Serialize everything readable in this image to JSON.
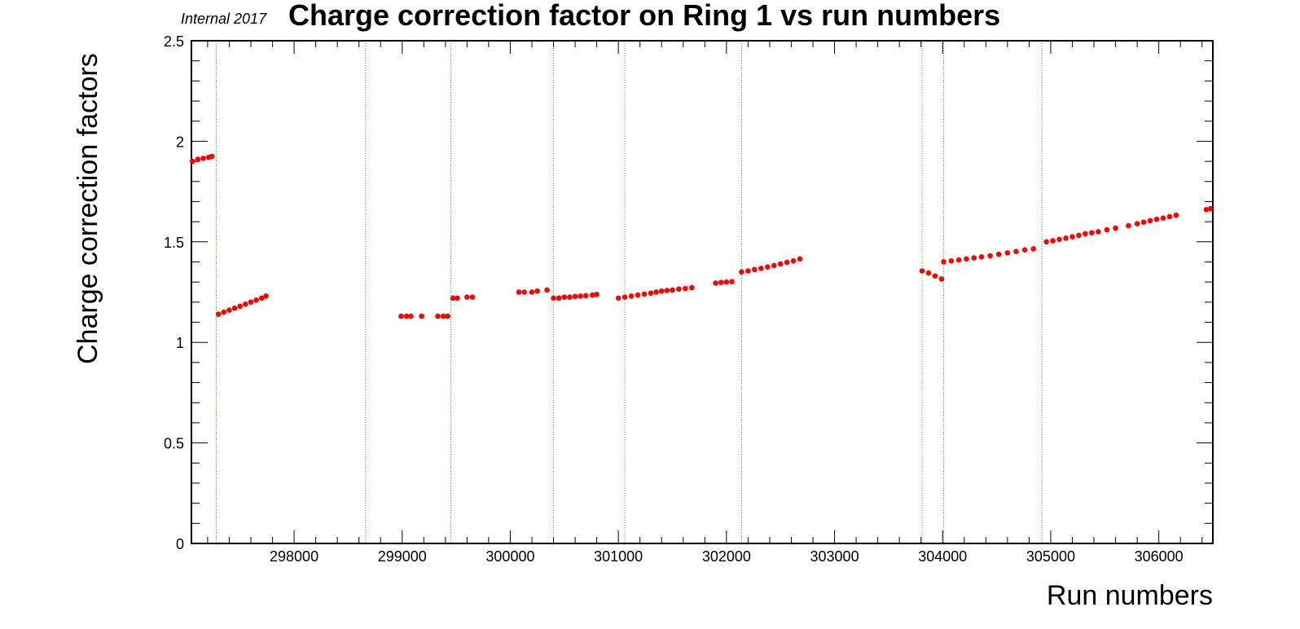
{
  "header": {
    "tag": "Internal 2017",
    "title": "Charge correction factor on Ring 1 vs run numbers"
  },
  "chart_data": {
    "type": "scatter",
    "title": "Charge correction factor on Ring 1 vs run numbers",
    "xlabel": "Run numbers",
    "ylabel": "Charge correction factors",
    "xlim": [
      297050,
      306500
    ],
    "ylim": [
      0,
      2.5
    ],
    "x_ticks": [
      298000,
      299000,
      300000,
      301000,
      302000,
      303000,
      304000,
      305000,
      306000
    ],
    "y_ticks": [
      0,
      0.5,
      1,
      1.5,
      2,
      2.5
    ],
    "y_tick_labels": [
      "0",
      "0.5",
      "1",
      "1.5",
      "2",
      "2.5"
    ],
    "grid": false,
    "marker_color": "#ff0000",
    "reference_line_color": "#00cc00",
    "vertical_reference_lines": [
      297280,
      298660,
      299450,
      300400,
      301060,
      302140,
      303810,
      304010,
      304920
    ],
    "points": [
      [
        297060,
        1.9
      ],
      [
        297110,
        1.91
      ],
      [
        297160,
        1.915
      ],
      [
        297210,
        1.92
      ],
      [
        297240,
        1.925
      ],
      [
        297300,
        1.14
      ],
      [
        297350,
        1.15
      ],
      [
        297400,
        1.16
      ],
      [
        297450,
        1.17
      ],
      [
        297500,
        1.18
      ],
      [
        297550,
        1.19
      ],
      [
        297600,
        1.2
      ],
      [
        297650,
        1.21
      ],
      [
        297700,
        1.22
      ],
      [
        297740,
        1.23
      ],
      [
        298990,
        1.13
      ],
      [
        299040,
        1.13
      ],
      [
        299080,
        1.13
      ],
      [
        299180,
        1.13
      ],
      [
        299330,
        1.13
      ],
      [
        299380,
        1.13
      ],
      [
        299420,
        1.13
      ],
      [
        299470,
        1.22
      ],
      [
        299510,
        1.22
      ],
      [
        299600,
        1.225
      ],
      [
        299650,
        1.225
      ],
      [
        300080,
        1.25
      ],
      [
        300130,
        1.25
      ],
      [
        300200,
        1.25
      ],
      [
        300250,
        1.255
      ],
      [
        300340,
        1.26
      ],
      [
        300400,
        1.22
      ],
      [
        300450,
        1.22
      ],
      [
        300500,
        1.225
      ],
      [
        300550,
        1.225
      ],
      [
        300600,
        1.228
      ],
      [
        300650,
        1.23
      ],
      [
        300700,
        1.232
      ],
      [
        300760,
        1.235
      ],
      [
        300800,
        1.238
      ],
      [
        301000,
        1.22
      ],
      [
        301060,
        1.225
      ],
      [
        301120,
        1.23
      ],
      [
        301180,
        1.235
      ],
      [
        301240,
        1.24
      ],
      [
        301300,
        1.245
      ],
      [
        301350,
        1.25
      ],
      [
        301400,
        1.255
      ],
      [
        301450,
        1.258
      ],
      [
        301500,
        1.26
      ],
      [
        301560,
        1.265
      ],
      [
        301620,
        1.268
      ],
      [
        301680,
        1.272
      ],
      [
        301900,
        1.295
      ],
      [
        301950,
        1.298
      ],
      [
        302000,
        1.3
      ],
      [
        302050,
        1.302
      ],
      [
        302140,
        1.35
      ],
      [
        302200,
        1.355
      ],
      [
        302260,
        1.362
      ],
      [
        302320,
        1.368
      ],
      [
        302380,
        1.375
      ],
      [
        302440,
        1.382
      ],
      [
        302500,
        1.39
      ],
      [
        302560,
        1.398
      ],
      [
        302620,
        1.405
      ],
      [
        302680,
        1.415
      ],
      [
        303810,
        1.355
      ],
      [
        303870,
        1.345
      ],
      [
        303930,
        1.33
      ],
      [
        303990,
        1.315
      ],
      [
        304010,
        1.4
      ],
      [
        304080,
        1.405
      ],
      [
        304150,
        1.41
      ],
      [
        304220,
        1.415
      ],
      [
        304290,
        1.42
      ],
      [
        304360,
        1.425
      ],
      [
        304440,
        1.43
      ],
      [
        304520,
        1.438
      ],
      [
        304600,
        1.445
      ],
      [
        304680,
        1.452
      ],
      [
        304760,
        1.46
      ],
      [
        304840,
        1.465
      ],
      [
        304960,
        1.5
      ],
      [
        305020,
        1.505
      ],
      [
        305080,
        1.512
      ],
      [
        305140,
        1.518
      ],
      [
        305200,
        1.525
      ],
      [
        305260,
        1.532
      ],
      [
        305320,
        1.54
      ],
      [
        305380,
        1.545
      ],
      [
        305440,
        1.55
      ],
      [
        305520,
        1.56
      ],
      [
        305600,
        1.568
      ],
      [
        305720,
        1.58
      ],
      [
        305800,
        1.59
      ],
      [
        305860,
        1.598
      ],
      [
        305920,
        1.605
      ],
      [
        305980,
        1.612
      ],
      [
        306040,
        1.618
      ],
      [
        306100,
        1.625
      ],
      [
        306160,
        1.632
      ],
      [
        306440,
        1.66
      ],
      [
        306480,
        1.665
      ]
    ]
  }
}
